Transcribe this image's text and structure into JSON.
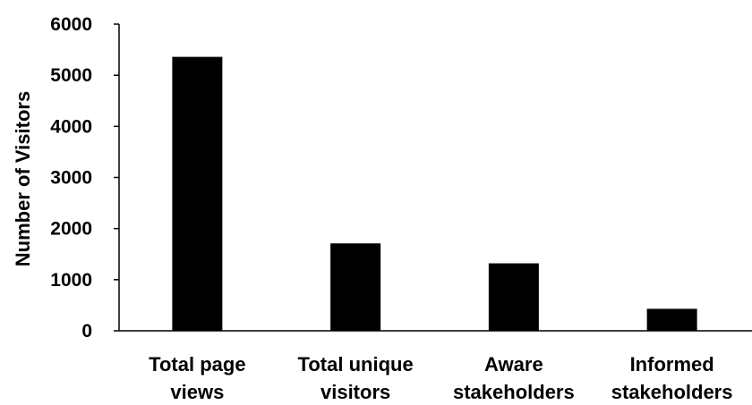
{
  "chart_data": {
    "type": "bar",
    "ylabel": "Number of Visitors",
    "xlabel": "",
    "ylim": [
      0,
      6000
    ],
    "yticks": [
      0,
      1000,
      2000,
      3000,
      4000,
      5000,
      6000
    ],
    "grid": false,
    "categories": [
      [
        "Total page",
        "views"
      ],
      [
        "Total unique",
        "visitors"
      ],
      [
        "Aware",
        "stakeholders"
      ],
      [
        "Informed",
        "stakeholders"
      ]
    ],
    "values": [
      5360,
      1710,
      1320,
      430
    ],
    "bar_color": "#000000"
  }
}
